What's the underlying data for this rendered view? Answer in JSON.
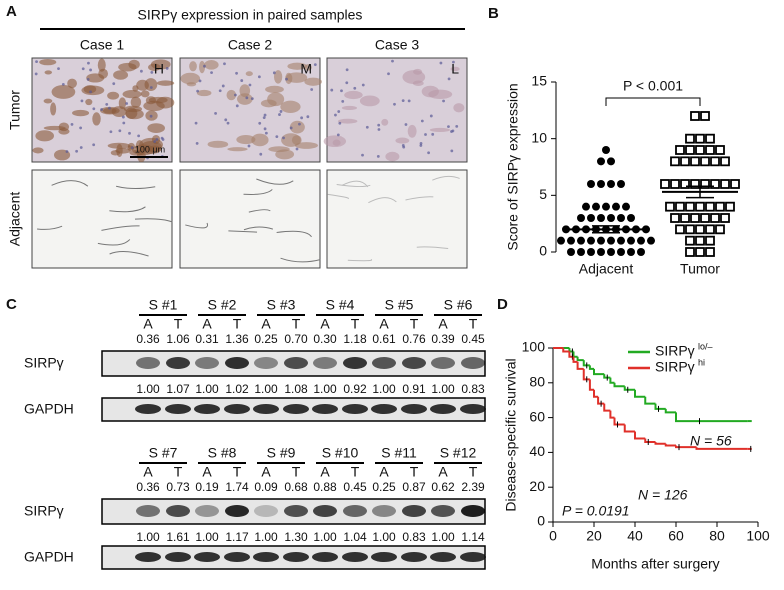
{
  "panel_a": {
    "label": "A",
    "title": "SIRPγ expression in paired samples",
    "cases": [
      "Case 1",
      "Case 2",
      "Case 3"
    ],
    "grades": [
      "H",
      "M",
      "L"
    ],
    "rows": [
      "Tumor",
      "Adjacent"
    ],
    "scale_bar": "100 μm"
  },
  "panel_b": {
    "label": "B"
  },
  "panel_c": {
    "label": "C",
    "rows": [
      "SIRPγ",
      "GAPDH"
    ],
    "lanes": [
      "A",
      "T"
    ],
    "groups": [
      {
        "samples": [
          "S #1",
          "S #2",
          "S #3",
          "S #4",
          "S #5",
          "S #6"
        ],
        "top_ratios": [
          [
            "0.36",
            "1.06"
          ],
          [
            "0.31",
            "1.36"
          ],
          [
            "0.25",
            "0.70"
          ],
          [
            "0.30",
            "1.18"
          ],
          [
            "0.61",
            "0.76"
          ],
          [
            "0.39",
            "0.45"
          ]
        ],
        "bottom_ratios": [
          [
            "1.00",
            "1.07"
          ],
          [
            "1.00",
            "1.02"
          ],
          [
            "1.00",
            "1.08"
          ],
          [
            "1.00",
            "0.92"
          ],
          [
            "1.00",
            "0.91"
          ],
          [
            "1.00",
            "0.83"
          ]
        ]
      },
      {
        "samples": [
          "S #7",
          "S #8",
          "S #9",
          "S #10",
          "S #11",
          "S #12"
        ],
        "top_ratios": [
          [
            "0.36",
            "0.73"
          ],
          [
            "0.19",
            "1.74"
          ],
          [
            "0.09",
            "0.68"
          ],
          [
            "0.88",
            "0.45"
          ],
          [
            "0.25",
            "0.87"
          ],
          [
            "0.62",
            "2.39"
          ]
        ],
        "bottom_ratios": [
          [
            "1.00",
            "1.61"
          ],
          [
            "1.00",
            "1.17"
          ],
          [
            "1.00",
            "1.30"
          ],
          [
            "1.00",
            "1.04"
          ],
          [
            "1.00",
            "0.83"
          ],
          [
            "1.00",
            "1.14"
          ]
        ]
      }
    ]
  },
  "panel_d": {
    "label": "D"
  },
  "chart_data": [
    {
      "type": "dot",
      "y_label": "Score of SIRPγ expression",
      "categories": [
        "Adjacent",
        "Tumor"
      ],
      "values": [
        [
          0,
          0,
          0,
          0,
          0,
          0,
          0,
          0,
          1,
          1,
          1,
          1,
          1,
          1,
          1,
          1,
          1,
          1,
          2,
          2,
          2,
          2,
          2,
          2,
          2,
          2,
          2,
          3,
          3,
          3,
          3,
          3,
          3,
          4,
          4,
          4,
          4,
          4,
          6,
          6,
          6,
          6,
          8,
          8,
          9
        ],
        [
          0,
          0,
          0,
          1,
          1,
          1,
          2,
          2,
          2,
          2,
          2,
          3,
          3,
          3,
          3,
          3,
          3,
          4,
          4,
          4,
          4,
          4,
          4,
          4,
          6,
          6,
          6,
          6,
          6,
          6,
          6,
          6,
          8,
          8,
          8,
          8,
          8,
          8,
          9,
          9,
          9,
          9,
          9,
          10,
          10,
          10,
          12,
          12
        ]
      ],
      "markers": [
        "filled-circle",
        "open-square"
      ],
      "mean": [
        2.0,
        5.3
      ],
      "sem": [
        0.3,
        0.5
      ],
      "ylim": [
        0,
        15
      ],
      "yticks": [
        0,
        5,
        10,
        15
      ],
      "annotation": "P < 0.001"
    },
    {
      "type": "step",
      "x_label": "Months after surgery",
      "y_label": "Disease-specific survival",
      "xlim": [
        0,
        100
      ],
      "xticks": [
        0,
        20,
        40,
        60,
        80,
        100
      ],
      "ylim": [
        0,
        100
      ],
      "yticks": [
        0,
        20,
        40,
        60,
        80,
        100
      ],
      "series": [
        {
          "name": "SIRPγ",
          "name_sup": "lo/–",
          "color": "#22aa22",
          "n_label": "N = 56",
          "x": [
            0,
            5,
            8,
            10,
            12,
            15,
            18,
            20,
            25,
            28,
            30,
            35,
            40,
            45,
            50,
            55,
            60,
            70,
            80,
            95
          ],
          "values": [
            100,
            100,
            98,
            95,
            93,
            90,
            88,
            85,
            83,
            80,
            78,
            76,
            72,
            68,
            65,
            63,
            58,
            58,
            58,
            58
          ]
        },
        {
          "name": "SIRPγ",
          "name_sup": "hi",
          "color": "#e0302a",
          "n_label": "N = 126",
          "x": [
            0,
            5,
            8,
            10,
            12,
            15,
            18,
            20,
            22,
            25,
            28,
            30,
            35,
            40,
            45,
            50,
            55,
            60,
            70,
            80,
            95
          ],
          "values": [
            100,
            98,
            95,
            92,
            88,
            82,
            76,
            72,
            68,
            64,
            60,
            56,
            52,
            48,
            46,
            45,
            44,
            43,
            42,
            42,
            42
          ]
        }
      ],
      "annotation": "P = 0.0191"
    }
  ]
}
